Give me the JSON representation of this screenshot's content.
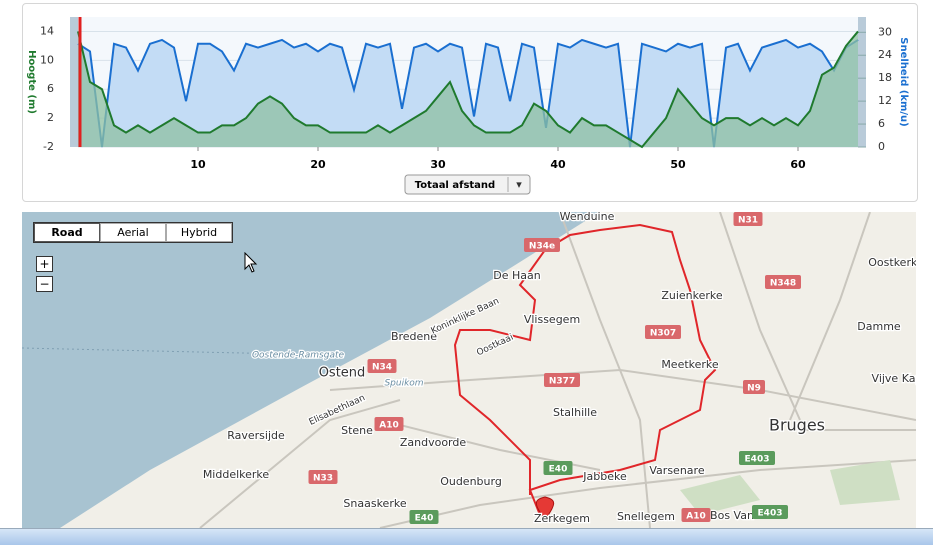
{
  "chart_data": {
    "type": "line",
    "y_label": "Hoogte (m)",
    "y2_label": "Snelheid (km/u)",
    "x": [
      0,
      1,
      2,
      3,
      4,
      5,
      6,
      7,
      8,
      9,
      10,
      11,
      12,
      13,
      14,
      15,
      16,
      17,
      18,
      19,
      20,
      21,
      22,
      23,
      24,
      25,
      26,
      27,
      28,
      29,
      30,
      31,
      32,
      33,
      34,
      35,
      36,
      37,
      38,
      39,
      40,
      41,
      42,
      43,
      44,
      45,
      46,
      47,
      48,
      49,
      50,
      51,
      52,
      53,
      54,
      55,
      56,
      57,
      58,
      59,
      60,
      61,
      62,
      63,
      64,
      65
    ],
    "series": [
      {
        "color": "#1f7a2e",
        "fill": "#8fc0a2",
        "values": [
          14,
          7,
          6,
          1,
          0,
          1,
          0,
          1,
          2,
          1,
          0,
          0,
          1,
          1,
          2,
          4,
          5,
          4,
          2,
          1,
          1,
          0,
          0,
          0,
          0,
          1,
          0,
          1,
          2,
          3,
          5,
          7,
          3,
          1,
          0,
          0,
          0,
          1,
          4,
          3,
          1,
          0,
          2,
          1,
          1,
          0,
          -1,
          -2,
          0,
          2,
          6,
          4,
          2,
          1,
          2,
          2,
          1,
          2,
          1,
          2,
          1,
          3,
          8,
          9,
          12,
          14
        ]
      },
      {
        "color": "#1a6fd0",
        "fill": "#c3dcf5",
        "axis": "y2",
        "values": [
          27,
          25,
          0,
          27,
          26,
          20,
          27,
          28,
          26,
          12,
          27,
          27,
          25,
          20,
          27,
          26,
          27,
          28,
          26,
          27,
          25,
          27,
          26,
          15,
          27,
          26,
          27,
          10,
          26,
          27,
          25,
          27,
          26,
          8,
          27,
          26,
          12,
          27,
          26,
          5,
          27,
          26,
          28,
          27,
          26,
          27,
          0,
          27,
          26,
          25,
          27,
          26,
          27,
          0,
          26,
          27,
          20,
          26,
          27,
          28,
          26,
          27,
          25,
          20,
          26,
          28
        ]
      }
    ],
    "xlim": [
      0,
      65
    ],
    "xticks": [
      10,
      20,
      30,
      40,
      50,
      60
    ],
    "ylim": [
      -2,
      16
    ],
    "yticks": [
      -2,
      2,
      6,
      10,
      14
    ],
    "y2lim": [
      0,
      34
    ],
    "y2ticks": [
      0,
      6,
      12,
      18,
      24,
      30
    ],
    "grid": true
  },
  "controls": {
    "distance_selector": "Totaal afstand",
    "dropdown_arrow": "▾"
  },
  "map": {
    "buttons": [
      "Road",
      "Aerial",
      "Hybrid"
    ],
    "zoom_in": "+",
    "zoom_out": "−",
    "places": [
      "Wenduine",
      "De Haan",
      "Vlissegem",
      "Zuienkerke",
      "Bredene",
      "Ostend",
      "Meetkerke",
      "Stalhille",
      "Bruges",
      "Stene",
      "Zandvoorde",
      "Raversijde",
      "Middelkerke",
      "Oudenburg",
      "Jabbeke",
      "Varsenare",
      "Snaaskerke",
      "Snellegem",
      "Bos Van",
      "Oostkerke",
      "Damme",
      "Vijve Kap",
      "Zerkegem",
      "Oostende-Ramsgate",
      "Spuikom",
      "Elisabethlaan",
      "Koninklijke Baan",
      "Oostkaai"
    ],
    "roads": [
      "N31",
      "N34e",
      "N348",
      "N307",
      "N34",
      "N377",
      "N9",
      "A10",
      "E40",
      "E403",
      "N33",
      "E40",
      "A10",
      "E403"
    ]
  }
}
